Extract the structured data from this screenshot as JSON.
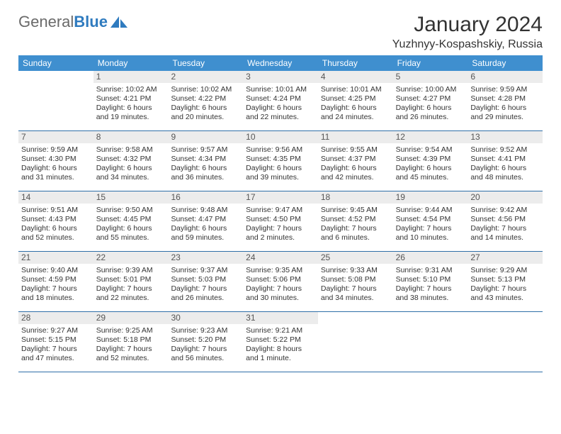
{
  "brand": {
    "part1": "General",
    "part2": "Blue"
  },
  "title": "January 2024",
  "location": "Yuzhnyy-Kospashskiy, Russia",
  "colors": {
    "header_bg": "#3f8fcf",
    "header_text": "#ffffff",
    "daynum_bg": "#ececec",
    "week_border": "#2f6fa8",
    "body_text": "#333333",
    "brand_blue": "#2f7bbf"
  },
  "day_names": [
    "Sunday",
    "Monday",
    "Tuesday",
    "Wednesday",
    "Thursday",
    "Friday",
    "Saturday"
  ],
  "weeks": [
    [
      {
        "n": "",
        "sr": "",
        "ss": "",
        "dl": ""
      },
      {
        "n": "1",
        "sr": "Sunrise: 10:02 AM",
        "ss": "Sunset: 4:21 PM",
        "dl": "Daylight: 6 hours and 19 minutes."
      },
      {
        "n": "2",
        "sr": "Sunrise: 10:02 AM",
        "ss": "Sunset: 4:22 PM",
        "dl": "Daylight: 6 hours and 20 minutes."
      },
      {
        "n": "3",
        "sr": "Sunrise: 10:01 AM",
        "ss": "Sunset: 4:24 PM",
        "dl": "Daylight: 6 hours and 22 minutes."
      },
      {
        "n": "4",
        "sr": "Sunrise: 10:01 AM",
        "ss": "Sunset: 4:25 PM",
        "dl": "Daylight: 6 hours and 24 minutes."
      },
      {
        "n": "5",
        "sr": "Sunrise: 10:00 AM",
        "ss": "Sunset: 4:27 PM",
        "dl": "Daylight: 6 hours and 26 minutes."
      },
      {
        "n": "6",
        "sr": "Sunrise: 9:59 AM",
        "ss": "Sunset: 4:28 PM",
        "dl": "Daylight: 6 hours and 29 minutes."
      }
    ],
    [
      {
        "n": "7",
        "sr": "Sunrise: 9:59 AM",
        "ss": "Sunset: 4:30 PM",
        "dl": "Daylight: 6 hours and 31 minutes."
      },
      {
        "n": "8",
        "sr": "Sunrise: 9:58 AM",
        "ss": "Sunset: 4:32 PM",
        "dl": "Daylight: 6 hours and 34 minutes."
      },
      {
        "n": "9",
        "sr": "Sunrise: 9:57 AM",
        "ss": "Sunset: 4:34 PM",
        "dl": "Daylight: 6 hours and 36 minutes."
      },
      {
        "n": "10",
        "sr": "Sunrise: 9:56 AM",
        "ss": "Sunset: 4:35 PM",
        "dl": "Daylight: 6 hours and 39 minutes."
      },
      {
        "n": "11",
        "sr": "Sunrise: 9:55 AM",
        "ss": "Sunset: 4:37 PM",
        "dl": "Daylight: 6 hours and 42 minutes."
      },
      {
        "n": "12",
        "sr": "Sunrise: 9:54 AM",
        "ss": "Sunset: 4:39 PM",
        "dl": "Daylight: 6 hours and 45 minutes."
      },
      {
        "n": "13",
        "sr": "Sunrise: 9:52 AM",
        "ss": "Sunset: 4:41 PM",
        "dl": "Daylight: 6 hours and 48 minutes."
      }
    ],
    [
      {
        "n": "14",
        "sr": "Sunrise: 9:51 AM",
        "ss": "Sunset: 4:43 PM",
        "dl": "Daylight: 6 hours and 52 minutes."
      },
      {
        "n": "15",
        "sr": "Sunrise: 9:50 AM",
        "ss": "Sunset: 4:45 PM",
        "dl": "Daylight: 6 hours and 55 minutes."
      },
      {
        "n": "16",
        "sr": "Sunrise: 9:48 AM",
        "ss": "Sunset: 4:47 PM",
        "dl": "Daylight: 6 hours and 59 minutes."
      },
      {
        "n": "17",
        "sr": "Sunrise: 9:47 AM",
        "ss": "Sunset: 4:50 PM",
        "dl": "Daylight: 7 hours and 2 minutes."
      },
      {
        "n": "18",
        "sr": "Sunrise: 9:45 AM",
        "ss": "Sunset: 4:52 PM",
        "dl": "Daylight: 7 hours and 6 minutes."
      },
      {
        "n": "19",
        "sr": "Sunrise: 9:44 AM",
        "ss": "Sunset: 4:54 PM",
        "dl": "Daylight: 7 hours and 10 minutes."
      },
      {
        "n": "20",
        "sr": "Sunrise: 9:42 AM",
        "ss": "Sunset: 4:56 PM",
        "dl": "Daylight: 7 hours and 14 minutes."
      }
    ],
    [
      {
        "n": "21",
        "sr": "Sunrise: 9:40 AM",
        "ss": "Sunset: 4:59 PM",
        "dl": "Daylight: 7 hours and 18 minutes."
      },
      {
        "n": "22",
        "sr": "Sunrise: 9:39 AM",
        "ss": "Sunset: 5:01 PM",
        "dl": "Daylight: 7 hours and 22 minutes."
      },
      {
        "n": "23",
        "sr": "Sunrise: 9:37 AM",
        "ss": "Sunset: 5:03 PM",
        "dl": "Daylight: 7 hours and 26 minutes."
      },
      {
        "n": "24",
        "sr": "Sunrise: 9:35 AM",
        "ss": "Sunset: 5:06 PM",
        "dl": "Daylight: 7 hours and 30 minutes."
      },
      {
        "n": "25",
        "sr": "Sunrise: 9:33 AM",
        "ss": "Sunset: 5:08 PM",
        "dl": "Daylight: 7 hours and 34 minutes."
      },
      {
        "n": "26",
        "sr": "Sunrise: 9:31 AM",
        "ss": "Sunset: 5:10 PM",
        "dl": "Daylight: 7 hours and 38 minutes."
      },
      {
        "n": "27",
        "sr": "Sunrise: 9:29 AM",
        "ss": "Sunset: 5:13 PM",
        "dl": "Daylight: 7 hours and 43 minutes."
      }
    ],
    [
      {
        "n": "28",
        "sr": "Sunrise: 9:27 AM",
        "ss": "Sunset: 5:15 PM",
        "dl": "Daylight: 7 hours and 47 minutes."
      },
      {
        "n": "29",
        "sr": "Sunrise: 9:25 AM",
        "ss": "Sunset: 5:18 PM",
        "dl": "Daylight: 7 hours and 52 minutes."
      },
      {
        "n": "30",
        "sr": "Sunrise: 9:23 AM",
        "ss": "Sunset: 5:20 PM",
        "dl": "Daylight: 7 hours and 56 minutes."
      },
      {
        "n": "31",
        "sr": "Sunrise: 9:21 AM",
        "ss": "Sunset: 5:22 PM",
        "dl": "Daylight: 8 hours and 1 minute."
      },
      {
        "n": "",
        "sr": "",
        "ss": "",
        "dl": ""
      },
      {
        "n": "",
        "sr": "",
        "ss": "",
        "dl": ""
      },
      {
        "n": "",
        "sr": "",
        "ss": "",
        "dl": ""
      }
    ]
  ]
}
